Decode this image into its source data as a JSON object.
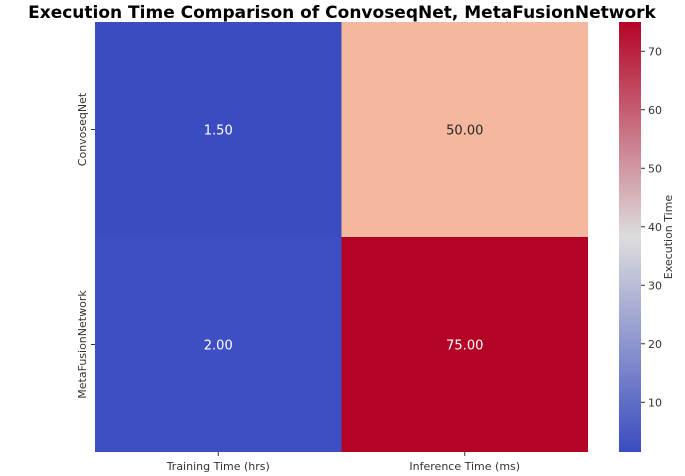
{
  "chart_data": {
    "type": "heatmap",
    "title": "Execution Time Comparison of ConvoseqNet, MetaFusionNetwork",
    "x_categories": [
      "Training Time (hrs)",
      "Inference Time (ms)"
    ],
    "y_categories": [
      "ConvoseqNet",
      "MetaFusionNetwork"
    ],
    "values": [
      [
        1.5,
        50.0
      ],
      [
        2.0,
        75.0
      ]
    ],
    "cell_labels": [
      [
        "1.50",
        "50.00"
      ],
      [
        "2.00",
        "75.00"
      ]
    ],
    "colormap": "coolwarm",
    "colors": {
      "low": "#3b4cc0",
      "mid": "#dddddd",
      "high": "#b40426"
    },
    "colorbar": {
      "label": "Execution Time",
      "ticks": [
        10,
        20,
        30,
        40,
        50,
        60,
        70
      ],
      "range": [
        1.5,
        75.0
      ]
    }
  }
}
